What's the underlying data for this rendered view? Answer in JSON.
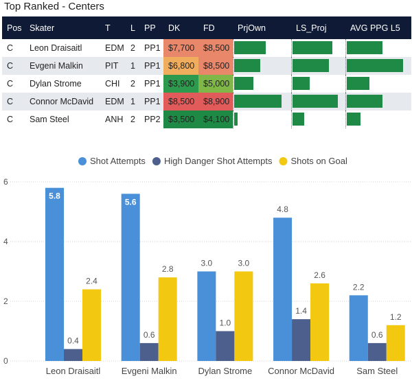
{
  "page": {
    "title": "Top Ranked - Centers"
  },
  "table": {
    "headers": [
      "Pos",
      "Skater",
      "T",
      "L",
      "PP",
      "DK",
      "FD",
      "PrjOwn",
      "LS_Proj",
      "AVG PPG L5"
    ],
    "rows": [
      {
        "pos": "C",
        "skater": "Leon Draisaitl",
        "team": "EDM",
        "line": "2",
        "pp": "PP1",
        "dk": "$7,700",
        "fd": "$8,500",
        "dk_color": "#e8876a",
        "fd_color": "#e8876a",
        "prjown": 0.58,
        "ls_proj": 0.76,
        "avg_ppg_l5": 0.64
      },
      {
        "pos": "C",
        "skater": "Evgeni Malkin",
        "team": "PIT",
        "line": "1",
        "pp": "PP1",
        "dk": "$6,800",
        "fd": "$8,500",
        "dk_color": "#f0ad5e",
        "fd_color": "#e8876a",
        "prjown": 0.47,
        "ls_proj": 0.7,
        "avg_ppg_l5": 1.0
      },
      {
        "pos": "C",
        "skater": "Dylan Strome",
        "team": "CHI",
        "line": "2",
        "pp": "PP1",
        "dk": "$3,900",
        "fd": "$5,000",
        "dk_color": "#2e9a4e",
        "fd_color": "#7fb849",
        "prjown": 0.35,
        "ls_proj": 0.33,
        "avg_ppg_l5": 0.4
      },
      {
        "pos": "C",
        "skater": "Connor McDavid",
        "team": "EDM",
        "line": "1",
        "pp": "PP1",
        "dk": "$8,500",
        "fd": "$8,900",
        "dk_color": "#e25b5b",
        "fd_color": "#e25b5b",
        "prjown": 0.86,
        "ls_proj": 0.87,
        "avg_ppg_l5": 0.63
      },
      {
        "pos": "C",
        "skater": "Sam Steel",
        "team": "ANH",
        "line": "2",
        "pp": "PP2",
        "dk": "$3,500",
        "fd": "$4,100",
        "dk_color": "#1f8a45",
        "fd_color": "#1f8a45",
        "prjown": 0.06,
        "ls_proj": 0.22,
        "avg_ppg_l5": 0.24
      }
    ]
  },
  "chart_data": {
    "type": "bar",
    "title": "",
    "categories": [
      "Leon Draisaitl",
      "Evgeni Malkin",
      "Dylan Strome",
      "Connor McDavid",
      "Sam Steel"
    ],
    "series": [
      {
        "name": "Shot Attempts",
        "color": "#4a90d9",
        "values": [
          5.8,
          5.6,
          3.0,
          4.8,
          2.2
        ]
      },
      {
        "name": "High Danger Shot Attempts",
        "color": "#4d5f8c",
        "values": [
          0.4,
          0.6,
          1.0,
          1.4,
          0.6
        ]
      },
      {
        "name": "Shots on Goal",
        "color": "#f2c811",
        "values": [
          2.4,
          2.8,
          3.0,
          2.6,
          1.2
        ]
      }
    ],
    "labels_text": [
      [
        "5.8",
        "5.6",
        "3.0",
        "4.8",
        "2.2"
      ],
      [
        "0.4",
        "0.6",
        "1.0",
        "1.4",
        "0.6"
      ],
      [
        "2.4",
        "2.8",
        "3.0",
        "2.6",
        "1.2"
      ]
    ],
    "ylim": [
      0,
      6
    ],
    "yticks": [
      "0",
      "2",
      "4",
      "6"
    ],
    "ytick_values": [
      0,
      2,
      4,
      6
    ],
    "legend_position": "top-center",
    "xlabel": "",
    "ylabel": ""
  }
}
